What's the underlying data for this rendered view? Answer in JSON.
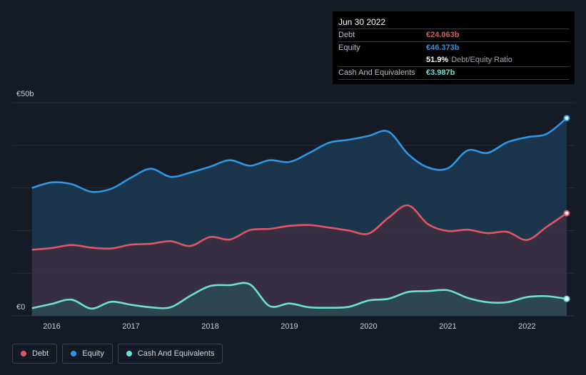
{
  "tooltip": {
    "date": "Jun 30 2022",
    "rows": [
      {
        "label": "Debt",
        "value": "€24.063b",
        "color": "#e05666"
      },
      {
        "label": "Equity",
        "value": "€46.373b",
        "color": "#2f96e4"
      }
    ],
    "ratio_value": "51.9%",
    "ratio_label": "Debt/Equity Ratio",
    "cash_label": "Cash And Equivalents",
    "cash_value": "€3.987b",
    "cash_color": "#6ee0d3"
  },
  "legend": [
    {
      "label": "Debt",
      "color": "#e05666"
    },
    {
      "label": "Equity",
      "color": "#2f96e4"
    },
    {
      "label": "Cash And Equivalents",
      "color": "#6ee0d3"
    }
  ],
  "chart_data": {
    "type": "area",
    "y_ticks": [
      {
        "value": 50,
        "label": "€50b"
      },
      {
        "value": 0,
        "label": "€0"
      }
    ],
    "x_ticks": [
      {
        "value": 2016,
        "label": "2016"
      },
      {
        "value": 2017,
        "label": "2017"
      },
      {
        "value": 2018,
        "label": "2018"
      },
      {
        "value": 2019,
        "label": "2019"
      },
      {
        "value": 2020,
        "label": "2020"
      },
      {
        "value": 2021,
        "label": "2021"
      },
      {
        "value": 2022,
        "label": "2022"
      }
    ],
    "xlim": [
      2015.5,
      2022.6
    ],
    "ylim": [
      0,
      50
    ],
    "grid": true,
    "series": [
      {
        "name": "Equity",
        "color": "#2f96e4",
        "x": [
          2015.75,
          2016.0,
          2016.25,
          2016.5,
          2016.75,
          2017.0,
          2017.25,
          2017.5,
          2017.75,
          2018.0,
          2018.25,
          2018.5,
          2018.75,
          2019.0,
          2019.25,
          2019.5,
          2019.75,
          2020.0,
          2020.25,
          2020.5,
          2020.75,
          2021.0,
          2021.25,
          2021.5,
          2021.75,
          2022.0,
          2022.25,
          2022.5
        ],
        "values": [
          30.0,
          31.3,
          30.9,
          29.1,
          29.8,
          32.4,
          34.5,
          32.6,
          33.6,
          35.0,
          36.5,
          35.2,
          36.5,
          36.1,
          38.2,
          40.6,
          41.3,
          42.2,
          43.2,
          37.9,
          34.8,
          34.6,
          38.8,
          38.2,
          40.7,
          41.9,
          42.7,
          46.373
        ]
      },
      {
        "name": "Debt",
        "color": "#e05666",
        "x": [
          2015.75,
          2016.0,
          2016.25,
          2016.5,
          2016.75,
          2017.0,
          2017.25,
          2017.5,
          2017.75,
          2018.0,
          2018.25,
          2018.5,
          2018.75,
          2019.0,
          2019.25,
          2019.5,
          2019.75,
          2020.0,
          2020.25,
          2020.5,
          2020.75,
          2021.0,
          2021.25,
          2021.5,
          2021.75,
          2022.0,
          2022.25,
          2022.5
        ],
        "values": [
          15.5,
          15.9,
          16.6,
          16.0,
          15.8,
          16.7,
          16.9,
          17.5,
          16.4,
          18.5,
          17.9,
          20.1,
          20.4,
          21.1,
          21.3,
          20.7,
          20.0,
          19.3,
          23.0,
          25.9,
          21.5,
          19.9,
          20.2,
          19.4,
          19.7,
          17.8,
          20.9,
          24.063
        ]
      },
      {
        "name": "Cash And Equivalents",
        "color": "#6ee0d3",
        "x": [
          2015.75,
          2016.0,
          2016.25,
          2016.5,
          2016.75,
          2017.0,
          2017.25,
          2017.5,
          2017.75,
          2018.0,
          2018.25,
          2018.5,
          2018.75,
          2019.0,
          2019.25,
          2019.5,
          2019.75,
          2020.0,
          2020.25,
          2020.5,
          2020.75,
          2021.0,
          2021.25,
          2021.5,
          2021.75,
          2022.0,
          2022.25,
          2022.5
        ],
        "values": [
          1.8,
          2.8,
          3.8,
          1.7,
          3.3,
          2.6,
          2.0,
          2.0,
          4.7,
          7.0,
          7.2,
          7.4,
          2.3,
          2.9,
          2.0,
          1.9,
          2.1,
          3.6,
          4.0,
          5.6,
          5.8,
          6.0,
          4.2,
          3.2,
          3.2,
          4.4,
          4.6,
          3.987
        ]
      }
    ]
  }
}
